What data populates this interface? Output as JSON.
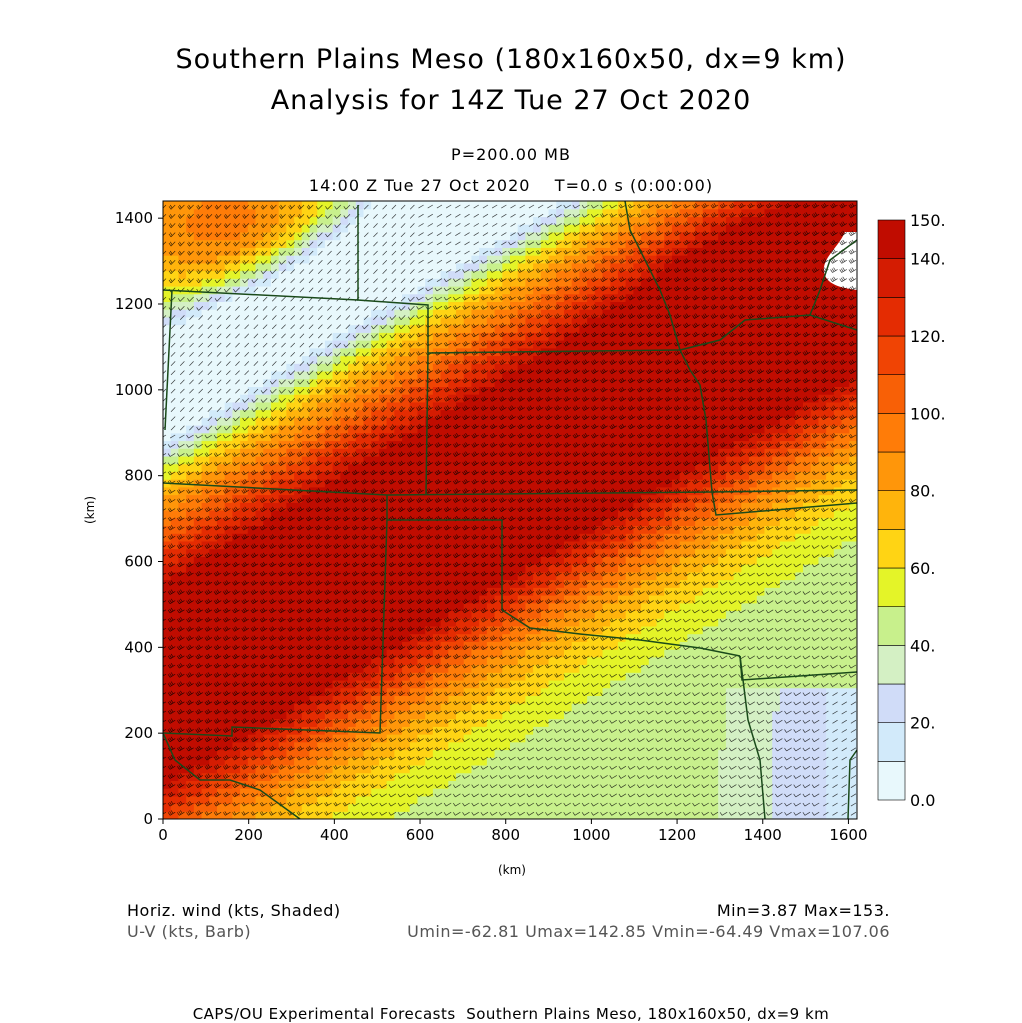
{
  "header": {
    "title_line1": "Southern Plains Meso (180x160x50, dx=9 km)",
    "title_line2": "Analysis for 14Z Tue 27 Oct 2020",
    "level": "P=200.00 MB",
    "time": "14:00 Z Tue 27 Oct 2020    T=0.0 s (0:00:00)"
  },
  "legend": {
    "left_line1": "Horiz. wind (kts, Shaded)",
    "left_line2": "U-V (kts, Barb)",
    "right_line1": "Min=3.87 Max=153.",
    "right_line2": "Umin=-62.81 Umax=142.85 Vmin=-64.49 Vmax=107.06"
  },
  "footer": "CAPS/OU Experimental Forecasts  Southern Plains Meso, 180x160x50, dx=9 km",
  "chart_data": {
    "type": "heatmap",
    "xlabel": "(km)",
    "ylabel": "(km)",
    "xlim": [
      0,
      1620
    ],
    "ylim": [
      0,
      1440
    ],
    "x_ticks": [
      "0",
      "200",
      "400",
      "600",
      "800",
      "1000",
      "1200",
      "1400",
      "1600"
    ],
    "y_ticks": [
      "0",
      "200",
      "400",
      "600",
      "800",
      "1000",
      "1200",
      "1400"
    ],
    "colorbar": {
      "labels": [
        "0.0",
        "20.",
        "40.",
        "60.",
        "80.",
        "100.",
        "120.",
        "140.",
        "150."
      ],
      "levels": [
        0,
        10,
        20,
        30,
        40,
        50,
        60,
        70,
        80,
        90,
        100,
        110,
        120,
        130,
        140,
        150
      ],
      "colors": [
        "#e8f8fc",
        "#d2eafa",
        "#d0dcf8",
        "#d4f0c4",
        "#c8f08c",
        "#e4f428",
        "#ffd414",
        "#ffb40c",
        "#ff960a",
        "#ff7c08",
        "#f86006",
        "#f04404",
        "#e42c02",
        "#d41c02",
        "#c00c00"
      ]
    },
    "wind_speed_field": {
      "description_units": "kts",
      "min": 3.87,
      "max": 153
    }
  },
  "colors": {
    "background": "#ffffff",
    "boundaries": "#1a4a1a",
    "barbs": "#000000"
  }
}
